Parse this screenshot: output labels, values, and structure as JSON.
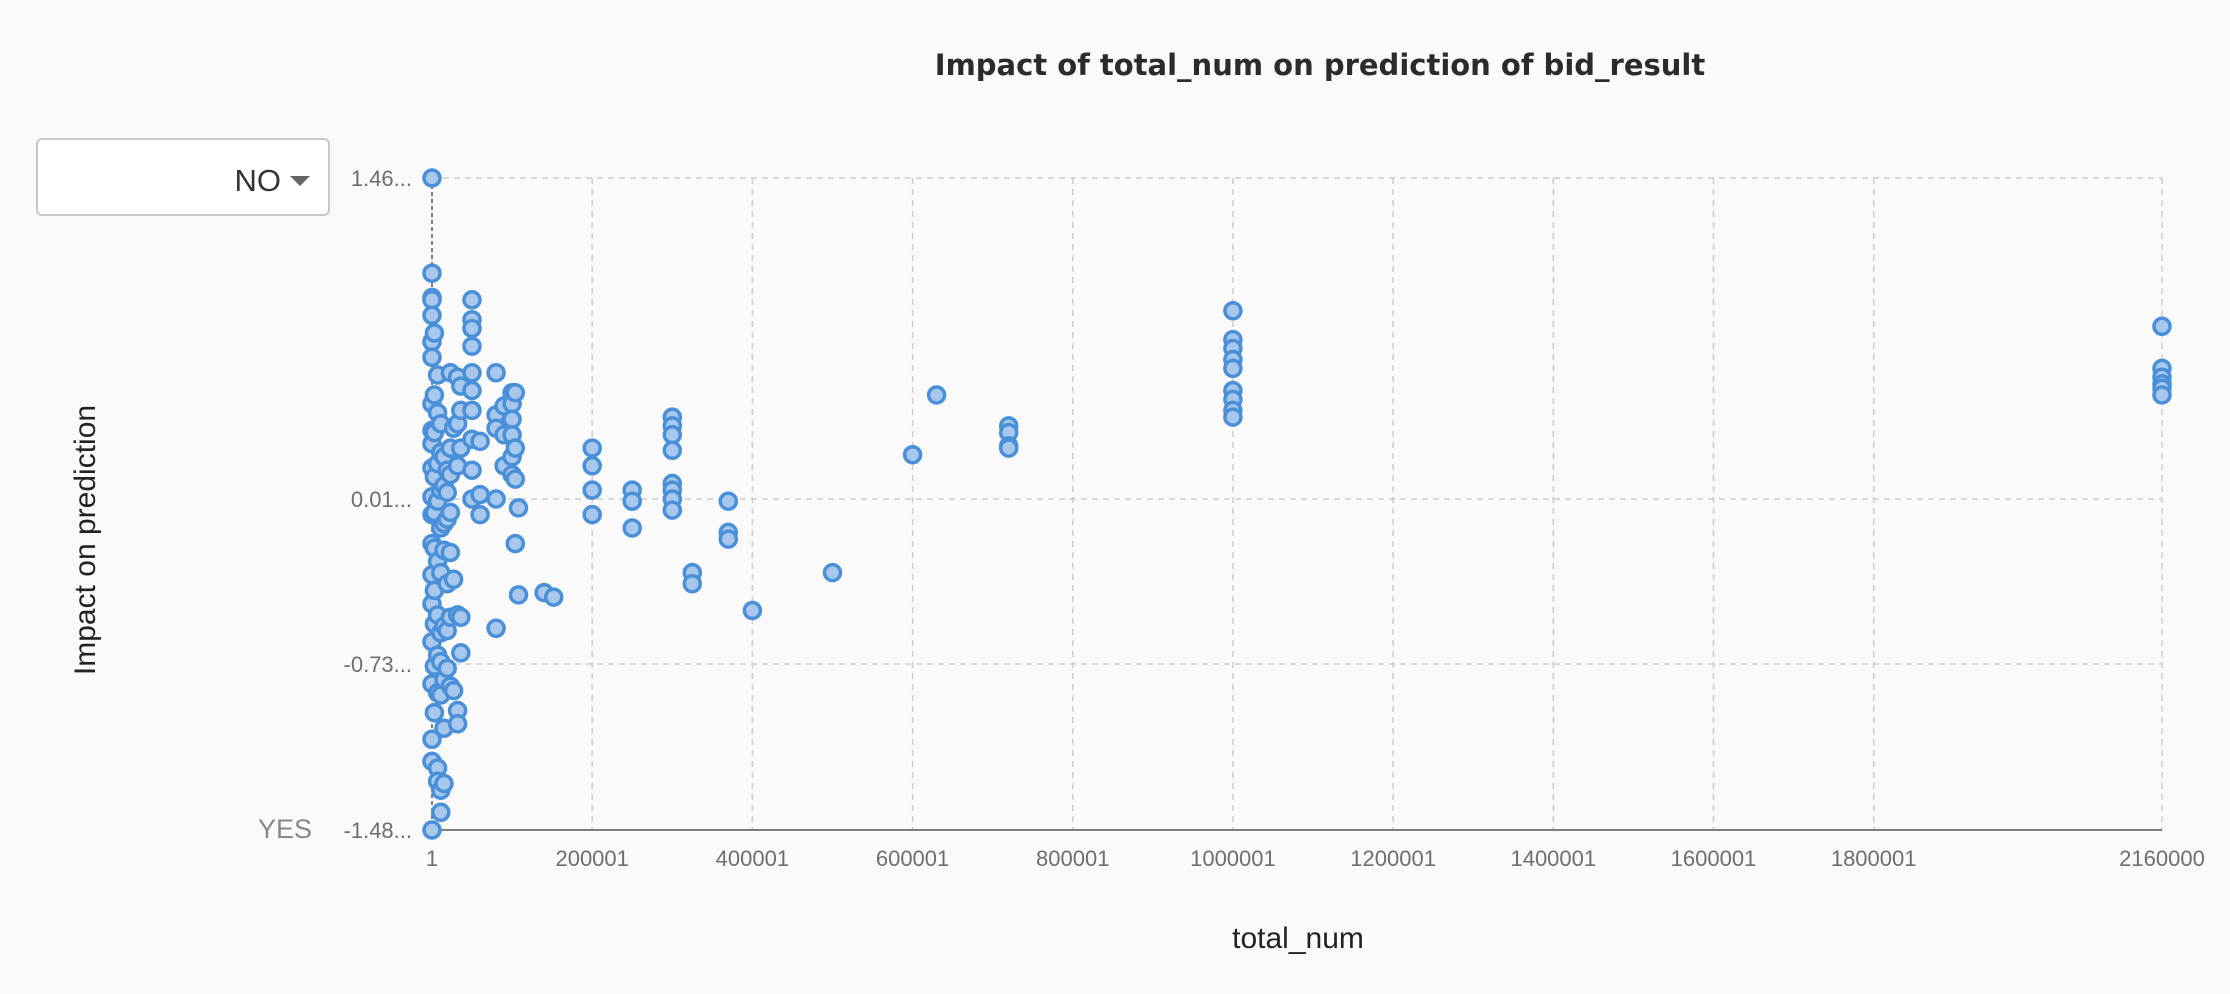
{
  "title": "Impact of total_num on prediction of bid_result",
  "class_selector": {
    "value": "NO",
    "icon": "caret-down-icon"
  },
  "bottom_class_label": "YES",
  "colors": {
    "point_fill": "#a7c8ec",
    "point_stroke": "#4a90d9",
    "grid": "#cccccc",
    "axis": "#555555",
    "background": "#fafafa"
  },
  "chart_data": {
    "type": "scatter",
    "title": "Impact of total_num on prediction of bid_result",
    "xlabel": "total_num",
    "ylabel": "Impact on prediction",
    "xlim": [
      1,
      2160000
    ],
    "ylim": [
      -1.48,
      1.46
    ],
    "grid": true,
    "x_ticks": [
      1,
      200001,
      400001,
      600001,
      800001,
      1000001,
      1200001,
      1400001,
      1600001,
      1800001,
      2160000
    ],
    "x_tick_labels": [
      "1",
      "200001",
      "400001",
      "600001",
      "800001",
      "1000001",
      "1200001",
      "1400001",
      "1600001",
      "1800001",
      "2160000"
    ],
    "y_ticks": [
      1.46,
      0.01,
      -0.73,
      -1.48
    ],
    "y_tick_labels": [
      "1.46...",
      "0.01...",
      "-0.73...",
      "-1.48..."
    ],
    "points": [
      [
        1,
        1.46
      ],
      [
        1,
        1.03
      ],
      [
        1,
        0.92
      ],
      [
        1,
        0.91
      ],
      [
        1,
        0.84
      ],
      [
        1,
        0.72
      ],
      [
        1,
        0.65
      ],
      [
        1,
        0.44
      ],
      [
        1,
        0.32
      ],
      [
        1,
        0.26
      ],
      [
        1,
        0.15
      ],
      [
        1,
        0.02
      ],
      [
        1,
        -0.06
      ],
      [
        1,
        -0.19
      ],
      [
        1,
        -0.33
      ],
      [
        1,
        -0.46
      ],
      [
        1,
        -0.63
      ],
      [
        1,
        -0.82
      ],
      [
        1,
        -1.07
      ],
      [
        1,
        -1.17
      ],
      [
        1,
        -1.48
      ],
      [
        3000,
        0.76
      ],
      [
        3000,
        0.48
      ],
      [
        3000,
        0.31
      ],
      [
        3000,
        0.11
      ],
      [
        3000,
        -0.05
      ],
      [
        3000,
        -0.21
      ],
      [
        3000,
        -0.4
      ],
      [
        3000,
        -0.55
      ],
      [
        3000,
        -0.74
      ],
      [
        3000,
        -0.95
      ],
      [
        7000,
        0.57
      ],
      [
        7000,
        0.4
      ],
      [
        7000,
        0.17
      ],
      [
        7000,
        0.0
      ],
      [
        7000,
        -0.27
      ],
      [
        7000,
        -0.51
      ],
      [
        7000,
        -0.69
      ],
      [
        7000,
        -0.86
      ],
      [
        7000,
        -1.2
      ],
      [
        7000,
        -1.26
      ],
      [
        11000,
        0.35
      ],
      [
        11000,
        0.22
      ],
      [
        11000,
        0.05
      ],
      [
        11000,
        -0.12
      ],
      [
        11000,
        -0.32
      ],
      [
        11000,
        -0.59
      ],
      [
        11000,
        -0.72
      ],
      [
        11000,
        -0.87
      ],
      [
        11000,
        -1.3
      ],
      [
        11000,
        -1.4
      ],
      [
        15000,
        0.2
      ],
      [
        15000,
        0.07
      ],
      [
        15000,
        -0.1
      ],
      [
        15000,
        -0.22
      ],
      [
        15000,
        -0.56
      ],
      [
        15000,
        -0.8
      ],
      [
        15000,
        -1.02
      ],
      [
        15000,
        -1.27
      ],
      [
        19000,
        0.14
      ],
      [
        19000,
        0.04
      ],
      [
        19000,
        -0.08
      ],
      [
        19000,
        -0.37
      ],
      [
        19000,
        -0.58
      ],
      [
        19000,
        -0.75
      ],
      [
        23000,
        0.58
      ],
      [
        23000,
        0.24
      ],
      [
        23000,
        0.12
      ],
      [
        23000,
        -0.05
      ],
      [
        23000,
        -0.23
      ],
      [
        23000,
        -0.52
      ],
      [
        23000,
        -0.83
      ],
      [
        27000,
        0.33
      ],
      [
        27000,
        -0.35
      ],
      [
        27000,
        -0.85
      ],
      [
        32000,
        0.56
      ],
      [
        32000,
        0.35
      ],
      [
        32000,
        0.16
      ],
      [
        32000,
        -0.51
      ],
      [
        32000,
        -0.94
      ],
      [
        32000,
        -1.0
      ],
      [
        36000,
        0.52
      ],
      [
        36000,
        0.41
      ],
      [
        36000,
        0.24
      ],
      [
        36000,
        -0.52
      ],
      [
        36000,
        -0.68
      ],
      [
        50000,
        0.91
      ],
      [
        50000,
        0.82
      ],
      [
        50000,
        0.78
      ],
      [
        50000,
        0.7
      ],
      [
        50000,
        0.58
      ],
      [
        50000,
        0.5
      ],
      [
        50000,
        0.41
      ],
      [
        50000,
        0.28
      ],
      [
        50000,
        0.14
      ],
      [
        50000,
        0.01
      ],
      [
        60000,
        0.27
      ],
      [
        60000,
        -0.06
      ],
      [
        60000,
        0.03
      ],
      [
        80000,
        0.58
      ],
      [
        80000,
        0.39
      ],
      [
        80000,
        0.33
      ],
      [
        80000,
        0.01
      ],
      [
        80000,
        -0.57
      ],
      [
        90000,
        0.43
      ],
      [
        90000,
        0.3
      ],
      [
        90000,
        0.16
      ],
      [
        100000,
        0.49
      ],
      [
        100000,
        0.44
      ],
      [
        100000,
        0.37
      ],
      [
        100000,
        0.3
      ],
      [
        100000,
        0.2
      ],
      [
        100000,
        0.12
      ],
      [
        104000,
        0.49
      ],
      [
        104000,
        0.24
      ],
      [
        104000,
        0.1
      ],
      [
        104000,
        -0.19
      ],
      [
        108000,
        -0.03
      ],
      [
        108000,
        -0.42
      ],
      [
        140000,
        -0.41
      ],
      [
        152000,
        -0.43
      ],
      [
        200001,
        0.24
      ],
      [
        200001,
        0.16
      ],
      [
        200001,
        0.05
      ],
      [
        200001,
        -0.06
      ],
      [
        250001,
        0.05
      ],
      [
        250001,
        0.0
      ],
      [
        250001,
        -0.12
      ],
      [
        300001,
        0.38
      ],
      [
        300001,
        0.34
      ],
      [
        300001,
        0.3
      ],
      [
        300001,
        0.23
      ],
      [
        300001,
        0.08
      ],
      [
        300001,
        0.05
      ],
      [
        300001,
        0.01
      ],
      [
        300001,
        -0.04
      ],
      [
        325000,
        -0.32
      ],
      [
        325000,
        -0.37
      ],
      [
        370000,
        0.0
      ],
      [
        370000,
        -0.14
      ],
      [
        370000,
        -0.17
      ],
      [
        400001,
        -0.49
      ],
      [
        500001,
        -0.32
      ],
      [
        600001,
        0.21
      ],
      [
        630000,
        0.48
      ],
      [
        720000,
        0.34
      ],
      [
        720000,
        0.31
      ],
      [
        720000,
        0.25
      ],
      [
        720000,
        0.24
      ],
      [
        1000001,
        0.86
      ],
      [
        1000001,
        0.73
      ],
      [
        1000001,
        0.69
      ],
      [
        1000001,
        0.64
      ],
      [
        1000001,
        0.6
      ],
      [
        1000001,
        0.5
      ],
      [
        1000001,
        0.46
      ],
      [
        1000001,
        0.41
      ],
      [
        1000001,
        0.38
      ],
      [
        2160000,
        0.79
      ],
      [
        2160000,
        0.6
      ],
      [
        2160000,
        0.56
      ],
      [
        2160000,
        0.53
      ],
      [
        2160000,
        0.51
      ],
      [
        2160000,
        0.48
      ]
    ]
  }
}
